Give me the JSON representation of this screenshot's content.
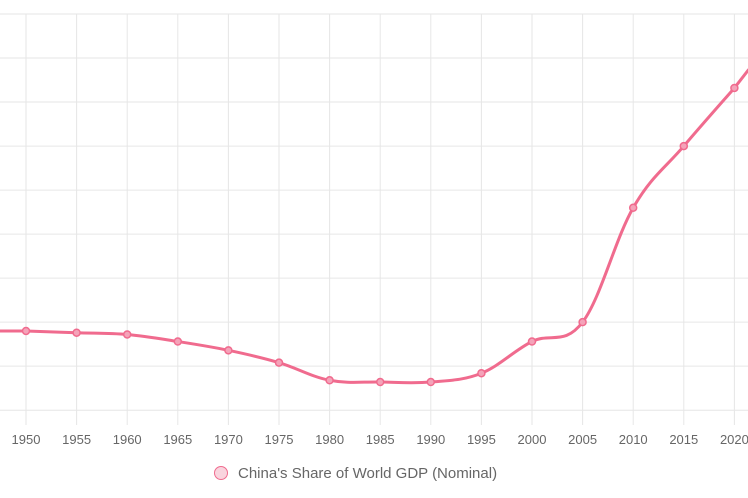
{
  "chart_data": {
    "type": "line",
    "x": [
      "1950",
      "1955",
      "1960",
      "1965",
      "1970",
      "1975",
      "1980",
      "1985",
      "1990",
      "1995",
      "2000",
      "2005",
      "2010",
      "2015",
      "2020"
    ],
    "series": [
      {
        "name": "China's Share of World GDP (Nominal)",
        "values": [
          4.5,
          4.4,
          4.3,
          3.9,
          3.4,
          2.7,
          1.7,
          1.6,
          1.6,
          2.1,
          3.9,
          5.0,
          11.5,
          15.0,
          18.3
        ]
      }
    ],
    "ylim": [
      -0.5,
      22.5
    ],
    "grid": true,
    "legend_position": "bottom",
    "colors": {
      "line": "#f06b8e",
      "point_fill": "#f4a3b9",
      "grid": "#e6e6e6"
    }
  }
}
